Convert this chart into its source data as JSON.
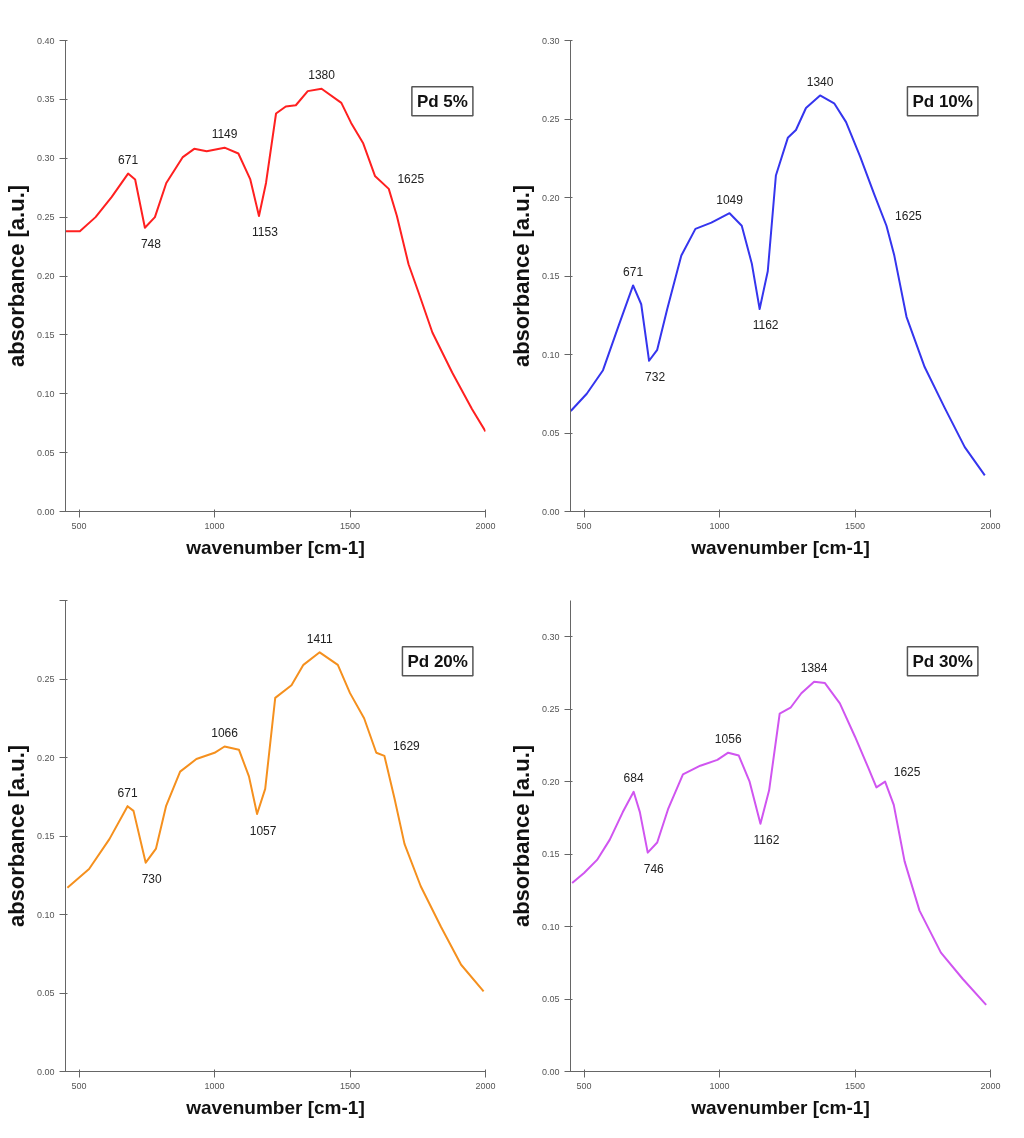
{
  "chart_data": [
    {
      "type": "line",
      "xlabel": "wavenumber [cm-1]",
      "ylabel": "absorbance [a.u.]",
      "xlim": [
        450,
        2000
      ],
      "xticks": [
        500,
        1000,
        1500,
        2000
      ],
      "ylim": [
        0,
        0.4
      ],
      "yticks": [
        {
          "value": 0,
          "label": "0.00"
        },
        0.05,
        {
          "value": 0.1,
          "label": "0.10"
        },
        0.15,
        {
          "value": 0.2,
          "label": "0.20"
        },
        0.25,
        {
          "value": 0.3,
          "label": "0.30"
        },
        0.35,
        {
          "value": 0.4,
          "label": "0.40"
        }
      ],
      "grid": false,
      "series": [
        {
          "color": "#ff2020",
          "x": [
            450,
            503,
            561,
            620,
            681,
            707,
            743,
            780,
            822,
            883,
            925,
            971,
            1037,
            1088,
            1132,
            1164,
            1190,
            1227,
            1263,
            1300,
            1344,
            1395,
            1468,
            1504,
            1548,
            1592,
            1643,
            1673,
            1716,
            1753,
            1804,
            1877,
            1950,
            2000
          ],
          "values": [
            0.238,
            0.238,
            0.25,
            0.267,
            0.287,
            0.282,
            0.241,
            0.25,
            0.279,
            0.301,
            0.308,
            0.306,
            0.309,
            0.304,
            0.282,
            0.251,
            0.279,
            0.338,
            0.344,
            0.345,
            0.357,
            0.359,
            0.347,
            0.33,
            0.313,
            0.285,
            0.274,
            0.251,
            0.21,
            0.186,
            0.152,
            0.118,
            0.087,
            0.068
          ]
        }
      ],
      "annotations": [
        "Pd 5%",
        {
          "text": "671",
          "x": 681,
          "y": 0.287
        },
        {
          "text": "748",
          "x": 743,
          "y": 0.241
        },
        {
          "text": "1149",
          "x": 1037,
          "y": 0.309
        },
        {
          "text": "1153",
          "x": 1164,
          "y": 0.251
        },
        {
          "text": "1380",
          "x": 1395,
          "y": 0.359
        },
        {
          "text": "1625",
          "x": 1643,
          "y": 0.274
        }
      ]
    },
    {
      "type": "line",
      "xlabel": "wavenumber [cm-1]",
      "ylabel": "absorbance [a.u.]",
      "xlim": [
        450,
        2000
      ],
      "xticks": [
        500,
        1000,
        1500,
        2000
      ],
      "ylim": [
        0,
        0.3
      ],
      "yticks": [
        {
          "value": 0,
          "label": "0.00"
        },
        0.05,
        {
          "value": 0.1,
          "label": "0.10"
        },
        0.15,
        {
          "value": 0.2,
          "label": "0.20"
        },
        0.25,
        {
          "value": 0.3,
          "label": "0.30"
        }
      ],
      "grid": false,
      "series": [
        {
          "color": "#3535ee",
          "x": [
            451,
            510,
            570,
            629,
            681,
            711,
            740,
            770,
            807,
            859,
            911,
            970,
            1037,
            1082,
            1119,
            1148,
            1178,
            1208,
            1252,
            1282,
            1319,
            1371,
            1423,
            1467,
            1519,
            1571,
            1616,
            1645,
            1690,
            1757,
            1831,
            1905,
            1979
          ],
          "values": [
            0.064,
            0.075,
            0.09,
            0.119,
            0.144,
            0.132,
            0.096,
            0.103,
            0.129,
            0.163,
            0.18,
            0.184,
            0.19,
            0.182,
            0.158,
            0.129,
            0.153,
            0.214,
            0.238,
            0.243,
            0.257,
            0.265,
            0.26,
            0.248,
            0.226,
            0.202,
            0.182,
            0.163,
            0.124,
            0.092,
            0.066,
            0.041,
            0.023
          ]
        }
      ],
      "annotations": [
        "Pd 10%",
        {
          "text": "671",
          "x": 681,
          "y": 0.144
        },
        {
          "text": "732",
          "x": 740,
          "y": 0.096
        },
        {
          "text": "1049",
          "x": 1037,
          "y": 0.19
        },
        {
          "text": "1162",
          "x": 1148,
          "y": 0.129
        },
        {
          "text": "1340",
          "x": 1371,
          "y": 0.265
        },
        {
          "text": "1625",
          "x": 1616,
          "y": 0.182
        }
      ]
    },
    {
      "type": "line",
      "xlabel": "wavenumber [cm-1]",
      "ylabel": "absorbance [a.u.]",
      "xlim": [
        450,
        2000
      ],
      "xticks": [
        500,
        1000,
        1500,
        2000
      ],
      "ylim": [
        0,
        0.3
      ],
      "yticks": [
        {
          "value": 0,
          "label": "0.00"
        },
        0.05,
        {
          "value": 0.1,
          "label": "0.10"
        },
        0.15,
        {
          "value": 0.2,
          "label": "0.20"
        },
        0.25,
        {
          "value": 0.3,
          "label": null
        }
      ],
      "grid": false,
      "series": [
        {
          "color": "#f5901e",
          "x": [
            457,
            537,
            612,
            679,
            701,
            746,
            784,
            821,
            873,
            933,
            1000,
            1037,
            1090,
            1127,
            1157,
            1187,
            1224,
            1284,
            1328,
            1388,
            1455,
            1500,
            1552,
            1597,
            1627,
            1664,
            1701,
            1761,
            1836,
            1910,
            1993
          ],
          "values": [
            0.117,
            0.129,
            0.148,
            0.169,
            0.166,
            0.133,
            0.142,
            0.169,
            0.191,
            0.199,
            0.203,
            0.207,
            0.205,
            0.188,
            0.164,
            0.18,
            0.238,
            0.246,
            0.259,
            0.267,
            0.259,
            0.241,
            0.225,
            0.203,
            0.201,
            0.174,
            0.145,
            0.118,
            0.092,
            0.068,
            0.051
          ]
        }
      ],
      "annotations": [
        "Pd 20%",
        {
          "text": "671",
          "x": 679,
          "y": 0.169
        },
        {
          "text": "730",
          "x": 746,
          "y": 0.133
        },
        {
          "text": "1066",
          "x": 1037,
          "y": 0.207
        },
        {
          "text": "1057",
          "x": 1157,
          "y": 0.164
        },
        {
          "text": "1411",
          "x": 1388,
          "y": 0.267
        },
        {
          "text": "1629",
          "x": 1627,
          "y": 0.201
        }
      ]
    },
    {
      "type": "line",
      "xlabel": "wavenumber [cm-1]",
      "ylabel": "absorbance [a.u.]",
      "xlim": [
        450,
        2000
      ],
      "xticks": [
        500,
        1000,
        1500,
        2000
      ],
      "ylim": [
        0,
        0.325
      ],
      "yticks": [
        {
          "value": 0,
          "label": "0.00"
        },
        0.05,
        {
          "value": 0.1,
          "label": "0.10"
        },
        0.15,
        {
          "value": 0.2,
          "label": "0.20"
        },
        0.25,
        {
          "value": 0.3,
          "label": "0.30"
        }
      ],
      "grid": false,
      "series": [
        {
          "color": "#d055f0",
          "x": [
            456,
            500,
            548,
            595,
            643,
            683,
            706,
            735,
            770,
            810,
            865,
            929,
            992,
            1032,
            1071,
            1111,
            1151,
            1183,
            1222,
            1262,
            1302,
            1349,
            1389,
            1444,
            1500,
            1548,
            1579,
            1611,
            1643,
            1683,
            1738,
            1817,
            1897,
            1984
          ],
          "values": [
            0.13,
            0.137,
            0.146,
            0.16,
            0.179,
            0.193,
            0.179,
            0.151,
            0.158,
            0.181,
            0.205,
            0.211,
            0.215,
            0.22,
            0.218,
            0.2,
            0.171,
            0.194,
            0.247,
            0.251,
            0.261,
            0.269,
            0.268,
            0.254,
            0.231,
            0.21,
            0.196,
            0.2,
            0.184,
            0.145,
            0.111,
            0.082,
            0.064,
            0.046
          ]
        }
      ],
      "annotations": [
        "Pd 30%",
        {
          "text": "684",
          "x": 683,
          "y": 0.193
        },
        {
          "text": "746",
          "x": 735,
          "y": 0.151
        },
        {
          "text": "1056",
          "x": 1032,
          "y": 0.22
        },
        {
          "text": "1162",
          "x": 1151,
          "y": 0.171
        },
        {
          "text": "1384",
          "x": 1349,
          "y": 0.269
        },
        {
          "text": "1625",
          "x": 1611,
          "y": 0.2
        }
      ]
    }
  ]
}
